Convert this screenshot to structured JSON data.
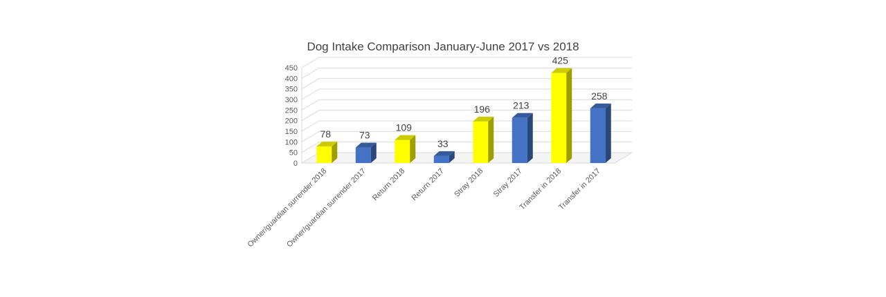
{
  "chart_data": {
    "type": "bar",
    "title": "Dog Intake Comparison January-June 2017 vs 2018",
    "categories": [
      "Owner/guardian surrender 2018",
      "Owner/guardian surrender 2017",
      "Return 2018",
      "Return 2017",
      "Stray 2018",
      "Stray 2017",
      "Transfer in 2018",
      "Transfer in 2017"
    ],
    "values": [
      78,
      73,
      109,
      33,
      196,
      213,
      425,
      258
    ],
    "bar_colors": [
      "#FFFF00",
      "#4472C4",
      "#FFFF00",
      "#4472C4",
      "#FFFF00",
      "#4472C4",
      "#FFFF00",
      "#4472C4"
    ],
    "ylim": [
      0,
      450
    ],
    "yticks": [
      0,
      50,
      100,
      150,
      200,
      250,
      300,
      350,
      400,
      450
    ],
    "grid": true,
    "legend": "none",
    "style": "3d-columns"
  }
}
